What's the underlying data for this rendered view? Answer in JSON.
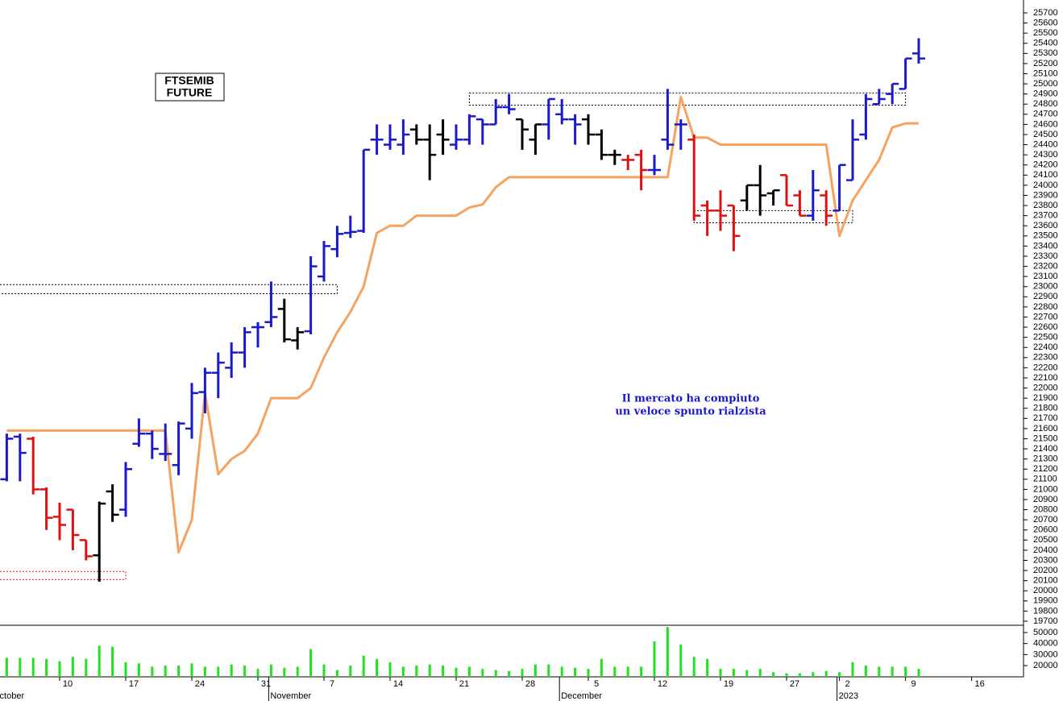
{
  "chart_data": {
    "type": "ohlc",
    "title_lines": [
      "FTSEMIB",
      "FUTURE"
    ],
    "annotation_lines": [
      "Il mercato ha compiuto",
      "un veloce spunto rialzista"
    ],
    "categories": [
      null,
      null,
      null,
      null,
      null,
      "10",
      null,
      null,
      null,
      null,
      "17",
      null,
      null,
      null,
      null,
      "24",
      null,
      null,
      null,
      null,
      "31",
      null,
      null,
      null,
      null,
      "7",
      null,
      null,
      null,
      null,
      "14",
      null,
      null,
      null,
      null,
      "21",
      null,
      null,
      null,
      null,
      "28",
      null,
      null,
      null,
      null,
      "5",
      null,
      null,
      null,
      null,
      "12",
      null,
      null,
      null,
      null,
      "19",
      null,
      null,
      null,
      null,
      "27",
      null,
      null,
      null,
      "2",
      null,
      null,
      null,
      null,
      "9",
      null,
      null,
      null,
      null,
      "16"
    ],
    "month_labels": [
      "October",
      null,
      null,
      null,
      null,
      null,
      null,
      null,
      null,
      null,
      null,
      null,
      null,
      null,
      null,
      null,
      null,
      null,
      null,
      null,
      null,
      "November",
      null,
      null,
      null,
      null,
      null,
      null,
      null,
      null,
      null,
      null,
      null,
      null,
      null,
      null,
      null,
      null,
      null,
      null,
      null,
      null,
      null,
      "December",
      null,
      null,
      null,
      null,
      null,
      null,
      null,
      null,
      null,
      null,
      null,
      null,
      null,
      null,
      null,
      null,
      null,
      null,
      null,
      null,
      "2023",
      null,
      null,
      null,
      null,
      null,
      null,
      null,
      null,
      null,
      null
    ],
    "ohlc": [
      null,
      [
        21100,
        21550,
        21080,
        21500
      ],
      [
        21520,
        21550,
        21080,
        21360
      ],
      [
        21500,
        21520,
        20950,
        21000
      ],
      [
        21000,
        21020,
        20600,
        20720
      ],
      [
        20730,
        20870,
        20500,
        20650
      ],
      [
        20800,
        20800,
        20400,
        20550
      ],
      [
        20500,
        20500,
        20300,
        20340
      ],
      [
        20350,
        20880,
        20090,
        20860
      ],
      [
        20980,
        21050,
        20680,
        20750
      ],
      [
        20800,
        21270,
        20730,
        21200
      ],
      [
        21450,
        21700,
        21420,
        21550
      ],
      [
        21550,
        21580,
        21300,
        21400
      ],
      [
        21350,
        21650,
        21280,
        21350
      ],
      [
        21240,
        21670,
        21140,
        21650
      ],
      [
        21600,
        22050,
        21500,
        21950
      ],
      [
        21960,
        22200,
        21750,
        22150
      ],
      [
        22150,
        22350,
        21900,
        22250
      ],
      [
        22200,
        22450,
        22100,
        22350
      ],
      [
        22350,
        22600,
        22200,
        22550
      ],
      [
        22600,
        22650,
        22400,
        22600
      ],
      [
        22650,
        23050,
        22600,
        22700
      ],
      [
        22780,
        22880,
        22450,
        22480
      ],
      [
        22470,
        22600,
        22380,
        22550
      ],
      [
        22560,
        23300,
        22530,
        23200
      ],
      [
        23100,
        23450,
        23050,
        23400
      ],
      [
        23370,
        23600,
        23290,
        23520
      ],
      [
        23530,
        23700,
        23480,
        23540
      ],
      [
        23550,
        24350,
        23530,
        24350
      ],
      [
        24450,
        24600,
        24300,
        24450
      ],
      [
        24400,
        24600,
        24350,
        24450
      ],
      [
        24400,
        24650,
        24300,
        24500
      ],
      [
        24550,
        24600,
        24400,
        24450
      ],
      [
        24450,
        24600,
        24050,
        24300
      ],
      [
        24500,
        24650,
        24300,
        24450
      ],
      [
        24400,
        24600,
        24350,
        24450
      ],
      [
        24450,
        24700,
        24400,
        24680
      ],
      [
        24650,
        24650,
        24400,
        24600
      ],
      [
        24600,
        24850,
        24600,
        24770
      ],
      [
        24770,
        24900,
        24700,
        24750
      ],
      [
        24650,
        24650,
        24350,
        24550
      ],
      [
        24450,
        24600,
        24300,
        24600
      ],
      [
        24600,
        24850,
        24450,
        24850
      ],
      [
        24700,
        24850,
        24600,
        24650
      ],
      [
        24650,
        24700,
        24400,
        24600
      ],
      [
        24650,
        24700,
        24400,
        24500
      ],
      [
        24500,
        24550,
        24250,
        24300
      ],
      [
        24300,
        24350,
        24200,
        24300
      ],
      [
        24250,
        24300,
        24150,
        24250
      ],
      [
        24300,
        24350,
        23950,
        24150
      ],
      [
        24150,
        24300,
        24100,
        24150
      ],
      [
        24450,
        24950,
        24350,
        24400
      ],
      [
        24600,
        24650,
        24350,
        24600
      ],
      [
        24450,
        24500,
        23650,
        23700
      ],
      [
        23800,
        23850,
        23500,
        23750
      ],
      [
        23750,
        23950,
        23550,
        23700
      ],
      [
        23800,
        23800,
        23350,
        23500
      ],
      [
        23850,
        24000,
        23750,
        24000
      ],
      [
        24000,
        24200,
        23700,
        23900
      ],
      [
        23920,
        23950,
        23800,
        23950
      ],
      [
        24100,
        24100,
        23800,
        23800
      ],
      [
        23900,
        23950,
        23700,
        23700
      ],
      [
        23700,
        24150,
        23650,
        23950
      ],
      [
        23900,
        23950,
        23600,
        23700
      ],
      [
        23750,
        24200,
        23750,
        24200
      ],
      [
        24050,
        24650,
        24050,
        24450
      ],
      [
        24500,
        24900,
        24450,
        24850
      ],
      [
        24800,
        24950,
        24800,
        24850
      ],
      [
        24900,
        25000,
        24800,
        25000
      ],
      [
        24950,
        25250,
        24950,
        25250
      ],
      [
        25300,
        25450,
        25200,
        25250
      ],
      null,
      null,
      null,
      null
    ],
    "bar_colors": [
      null,
      "#1a1acc",
      "#1a1acc",
      "#e01010",
      "#e01010",
      "#e01010",
      "#e01010",
      "#e01010",
      "#000000",
      "#000000",
      "#1a1acc",
      "#1a1acc",
      "#1a1acc",
      "#1a1acc",
      "#1a1acc",
      "#1a1acc",
      "#1a1acc",
      "#1a1acc",
      "#1a1acc",
      "#1a1acc",
      "#1a1acc",
      "#1a1acc",
      "#000000",
      "#000000",
      "#1a1acc",
      "#1a1acc",
      "#1a1acc",
      "#1a1acc",
      "#1a1acc",
      "#1a1acc",
      "#1a1acc",
      "#1a1acc",
      "#000000",
      "#000000",
      "#000000",
      "#1a1acc",
      "#1a1acc",
      "#1a1acc",
      "#1a1acc",
      "#1a1acc",
      "#000000",
      "#000000",
      "#1a1acc",
      "#1a1acc",
      "#1a1acc",
      "#000000",
      "#000000",
      "#000000",
      "#e01010",
      "#e01010",
      "#1a1acc",
      "#1a1acc",
      "#1a1acc",
      "#e01010",
      "#e01010",
      "#e01010",
      "#e01010",
      "#000000",
      "#000000",
      "#000000",
      "#e01010",
      "#e01010",
      "#1a1acc",
      "#e01010",
      "#1a1acc",
      "#1a1acc",
      "#1a1acc",
      "#1a1acc",
      "#1a1acc",
      "#1a1acc",
      "#1a1acc",
      null,
      null,
      null,
      null
    ],
    "trail": {
      "color": "#f4a460",
      "values": [
        null,
        21580,
        21580,
        21580,
        21580,
        21580,
        21580,
        21580,
        21580,
        21580,
        21580,
        21580,
        21580,
        21580,
        20380,
        20700,
        21950,
        21150,
        21300,
        21380,
        21550,
        21900,
        21900,
        21900,
        22000,
        22300,
        22550,
        22750,
        23000,
        23530,
        23600,
        23600,
        23700,
        23700,
        23700,
        23700,
        23780,
        23810,
        23980,
        24080,
        24080,
        24080,
        24080,
        24080,
        24080,
        24080,
        24080,
        24080,
        24080,
        24080,
        24080,
        24080,
        24870,
        24470,
        24470,
        24400,
        24400,
        24400,
        24400,
        24400,
        24400,
        24400,
        24400,
        24400,
        23500,
        23850,
        24050,
        24250,
        24570,
        24610,
        24610,
        null,
        null,
        null,
        null
      ]
    },
    "volume": {
      "color": "#22e022",
      "values": [
        null,
        27000,
        27000,
        27000,
        26000,
        24000,
        28000,
        26000,
        38000,
        37000,
        23000,
        22000,
        19000,
        20000,
        20000,
        22000,
        19000,
        19000,
        21000,
        20000,
        17000,
        21000,
        18000,
        19000,
        35000,
        21000,
        16000,
        20000,
        29000,
        26000,
        23000,
        19000,
        20000,
        21000,
        20000,
        18000,
        19000,
        17000,
        16000,
        15000,
        17000,
        21000,
        21000,
        19000,
        18000,
        17000,
        26000,
        19000,
        19000,
        19000,
        42000,
        55000,
        39000,
        28000,
        26000,
        17000,
        17000,
        16000,
        17000,
        14000,
        13000,
        13000,
        14000,
        15000,
        14000,
        23000,
        20000,
        19000,
        19000,
        19000,
        17000,
        null,
        null,
        null,
        null
      ],
      "ylim": [
        9800,
        56600
      ],
      "yticks": [
        20000,
        30000,
        40000,
        50000
      ]
    },
    "zones": [
      {
        "from": 0,
        "to": 26,
        "low": 22930,
        "high": 23020,
        "color": "#000000"
      },
      {
        "from": 0,
        "to": 10,
        "low": 20110,
        "high": 20190,
        "color": "#e01010"
      },
      {
        "from": 36,
        "to": 69,
        "low": 24790,
        "high": 24910,
        "color": "#000000"
      },
      {
        "from": 53,
        "to": 65,
        "low": 23630,
        "high": 23750,
        "color": "#000000"
      }
    ],
    "ylim": [
      19660,
      25827
    ],
    "yticks": [
      19700,
      19800,
      19900,
      20000,
      20100,
      20200,
      20300,
      20400,
      20500,
      20600,
      20700,
      20800,
      20900,
      21000,
      21100,
      21200,
      21300,
      21400,
      21500,
      21600,
      21700,
      21800,
      21900,
      22000,
      22100,
      22200,
      22300,
      22400,
      22500,
      22600,
      22700,
      22800,
      22900,
      23000,
      23100,
      23200,
      23300,
      23400,
      23500,
      23600,
      23700,
      23800,
      23900,
      24000,
      24100,
      24200,
      24300,
      24400,
      24500,
      24600,
      24700,
      24800,
      24900,
      25000,
      25100,
      25200,
      25300,
      25400,
      25500,
      25600,
      25700
    ]
  }
}
